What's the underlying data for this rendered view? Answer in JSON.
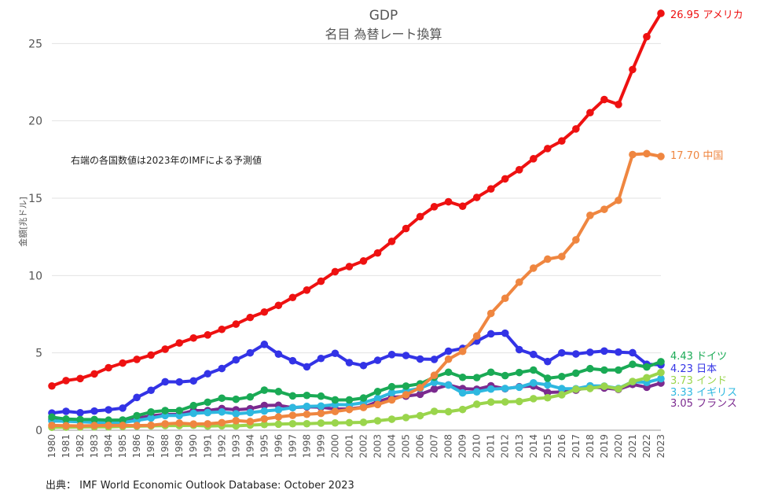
{
  "chart_data": {
    "type": "line",
    "title": "GDP",
    "subtitle": "名目 為替レート換算",
    "ylabel": "金額[兆ドル]",
    "xlabel": "",
    "ylim": [
      0,
      27
    ],
    "yticks": [
      0,
      5,
      10,
      15,
      20,
      25
    ],
    "grid": true,
    "annotation": "右端の各国数値は2023年のIMFによる予測値",
    "source": "出典： IMF World Economic Outlook Database: October 2023",
    "x": [
      "1980",
      "1981",
      "1982",
      "1983",
      "1984",
      "1985",
      "1986",
      "1987",
      "1988",
      "1989",
      "1990",
      "1991",
      "1992",
      "1993",
      "1994",
      "1995",
      "1996",
      "1997",
      "1998",
      "1999",
      "2000",
      "2001",
      "2002",
      "2003",
      "2004",
      "2005",
      "2006",
      "2007",
      "2008",
      "2009",
      "2010",
      "2011",
      "2012",
      "2013",
      "2014",
      "2015",
      "2016",
      "2017",
      "2018",
      "2019",
      "2020",
      "2021",
      "2022",
      "2023"
    ],
    "series": [
      {
        "name": "フランス",
        "label": "3.05 フランス",
        "color": "#7b2a8f",
        "values": [
          0.7,
          0.62,
          0.58,
          0.55,
          0.53,
          0.55,
          0.77,
          0.93,
          1.02,
          1.03,
          1.27,
          1.27,
          1.4,
          1.32,
          1.39,
          1.6,
          1.61,
          1.46,
          1.51,
          1.49,
          1.37,
          1.38,
          1.49,
          1.84,
          2.12,
          2.2,
          2.32,
          2.66,
          2.93,
          2.69,
          2.65,
          2.87,
          2.68,
          2.81,
          2.86,
          2.44,
          2.47,
          2.59,
          2.79,
          2.73,
          2.64,
          2.96,
          2.78,
          3.05
        ]
      },
      {
        "name": "イギリス",
        "label": "3.33 イギリス",
        "color": "#2eb8e0",
        "values": [
          0.6,
          0.58,
          0.55,
          0.51,
          0.48,
          0.5,
          0.63,
          0.78,
          0.95,
          0.95,
          1.09,
          1.14,
          1.18,
          1.06,
          1.14,
          1.24,
          1.32,
          1.46,
          1.54,
          1.56,
          1.66,
          1.64,
          1.78,
          2.06,
          2.42,
          2.54,
          2.71,
          3.09,
          2.92,
          2.41,
          2.48,
          2.66,
          2.7,
          2.78,
          3.06,
          2.93,
          2.69,
          2.68,
          2.87,
          2.85,
          2.7,
          3.14,
          3.09,
          3.33
        ]
      },
      {
        "name": "インド",
        "label": "3.73 インド",
        "color": "#9ad54c",
        "values": [
          0.19,
          0.2,
          0.21,
          0.22,
          0.22,
          0.24,
          0.26,
          0.28,
          0.3,
          0.3,
          0.32,
          0.27,
          0.29,
          0.28,
          0.33,
          0.37,
          0.39,
          0.42,
          0.42,
          0.46,
          0.47,
          0.49,
          0.51,
          0.61,
          0.71,
          0.82,
          0.94,
          1.22,
          1.2,
          1.34,
          1.68,
          1.82,
          1.83,
          1.86,
          2.04,
          2.1,
          2.29,
          2.65,
          2.7,
          2.84,
          2.67,
          3.15,
          3.39,
          3.73
        ]
      },
      {
        "name": "日本",
        "label": "4.23 日本",
        "color": "#3333e6",
        "values": [
          1.11,
          1.22,
          1.13,
          1.24,
          1.32,
          1.43,
          2.12,
          2.58,
          3.13,
          3.12,
          3.19,
          3.65,
          3.99,
          4.55,
          5.0,
          5.55,
          4.92,
          4.49,
          4.1,
          4.64,
          4.97,
          4.37,
          4.18,
          4.52,
          4.89,
          4.83,
          4.6,
          4.58,
          5.11,
          5.29,
          5.76,
          6.23,
          6.27,
          5.21,
          4.9,
          4.44,
          5.0,
          4.93,
          5.04,
          5.12,
          5.05,
          5.01,
          4.26,
          4.23
        ]
      },
      {
        "name": "ドイツ",
        "label": "4.43 ドイツ",
        "color": "#1aaa55",
        "values": [
          0.85,
          0.72,
          0.69,
          0.69,
          0.65,
          0.66,
          0.94,
          1.18,
          1.27,
          1.27,
          1.59,
          1.81,
          2.07,
          2.0,
          2.15,
          2.59,
          2.5,
          2.22,
          2.25,
          2.2,
          1.96,
          1.96,
          2.08,
          2.5,
          2.81,
          2.85,
          3.0,
          3.43,
          3.75,
          3.42,
          3.4,
          3.75,
          3.53,
          3.73,
          3.89,
          3.36,
          3.47,
          3.69,
          3.98,
          3.89,
          3.89,
          4.26,
          4.09,
          4.43
        ]
      },
      {
        "name": "中国",
        "label": "17.70 中国",
        "color": "#ef8640",
        "values": [
          0.31,
          0.29,
          0.28,
          0.3,
          0.31,
          0.31,
          0.3,
          0.32,
          0.41,
          0.46,
          0.4,
          0.41,
          0.49,
          0.62,
          0.56,
          0.73,
          0.86,
          0.96,
          1.03,
          1.09,
          1.21,
          1.34,
          1.47,
          1.66,
          1.96,
          2.29,
          2.75,
          3.55,
          4.59,
          5.1,
          6.09,
          7.55,
          8.53,
          9.57,
          10.48,
          11.06,
          11.23,
          12.31,
          13.89,
          14.28,
          14.86,
          17.82,
          17.88,
          17.7
        ]
      },
      {
        "name": "アメリカ",
        "label": "26.95 アメリカ",
        "color": "#ee1111",
        "values": [
          2.86,
          3.21,
          3.34,
          3.64,
          4.04,
          4.34,
          4.58,
          4.86,
          5.24,
          5.64,
          5.96,
          6.16,
          6.52,
          6.86,
          7.29,
          7.64,
          8.07,
          8.58,
          9.06,
          9.63,
          10.25,
          10.58,
          10.94,
          11.46,
          12.21,
          13.04,
          13.81,
          14.45,
          14.77,
          14.48,
          15.05,
          15.6,
          16.25,
          16.84,
          17.55,
          18.21,
          18.7,
          19.48,
          20.53,
          21.38,
          21.06,
          23.32,
          25.44,
          26.95
        ]
      }
    ]
  }
}
